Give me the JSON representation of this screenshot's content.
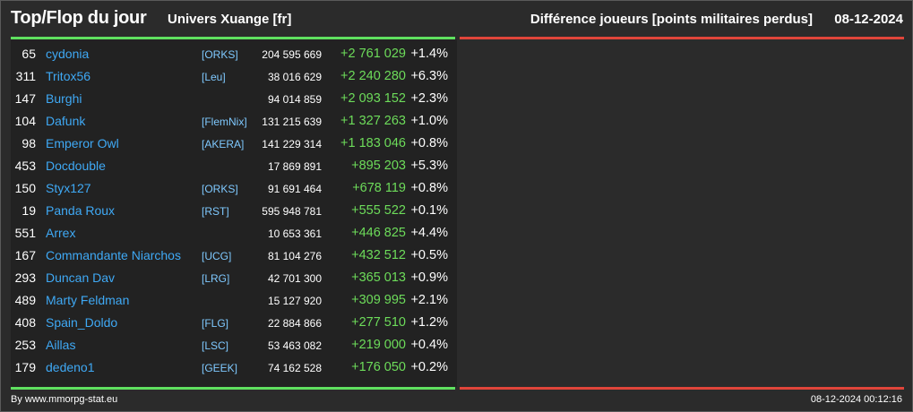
{
  "header": {
    "title": "Top/Flop du jour",
    "universe": "Univers Xuange [fr]",
    "stat_type": "Différence joueurs [points militaires perdus]",
    "date": "08-12-2024"
  },
  "colors": {
    "background": "#2b2b2b",
    "panel": "#222222",
    "top_line": "#5fe05f",
    "flop_line": "#e0453a",
    "name": "#3fa9f5",
    "alliance": "#7fc9ff",
    "gain": "#6ddc5a"
  },
  "top_list": [
    {
      "rank": "65",
      "name": "cydonia",
      "alliance": "[ORKS]",
      "points": "204 595 669",
      "diff": "+2 761 029",
      "pct": "+1.4%"
    },
    {
      "rank": "311",
      "name": "Tritox56",
      "alliance": "[Leu]",
      "points": "38 016 629",
      "diff": "+2 240 280",
      "pct": "+6.3%"
    },
    {
      "rank": "147",
      "name": "Burghi",
      "alliance": "",
      "points": "94 014 859",
      "diff": "+2 093 152",
      "pct": "+2.3%"
    },
    {
      "rank": "104",
      "name": "Dafunk",
      "alliance": "[FlemNix]",
      "points": "131 215 639",
      "diff": "+1 327 263",
      "pct": "+1.0%"
    },
    {
      "rank": "98",
      "name": "Emperor Owl",
      "alliance": "[AKERA]",
      "points": "141 229 314",
      "diff": "+1 183 046",
      "pct": "+0.8%"
    },
    {
      "rank": "453",
      "name": "Docdouble",
      "alliance": "",
      "points": "17 869 891",
      "diff": "+895 203",
      "pct": "+5.3%"
    },
    {
      "rank": "150",
      "name": "Styx127",
      "alliance": "[ORKS]",
      "points": "91 691 464",
      "diff": "+678 119",
      "pct": "+0.8%"
    },
    {
      "rank": "19",
      "name": "Panda Roux",
      "alliance": "[RST]",
      "points": "595 948 781",
      "diff": "+555 522",
      "pct": "+0.1%"
    },
    {
      "rank": "551",
      "name": "Arrex",
      "alliance": "",
      "points": "10 653 361",
      "diff": "+446 825",
      "pct": "+4.4%"
    },
    {
      "rank": "167",
      "name": "Commandante Niarchos",
      "alliance": "[UCG]",
      "points": "81 104 276",
      "diff": "+432 512",
      "pct": "+0.5%"
    },
    {
      "rank": "293",
      "name": "Duncan Dav",
      "alliance": "[LRG]",
      "points": "42 701 300",
      "diff": "+365 013",
      "pct": "+0.9%"
    },
    {
      "rank": "489",
      "name": "Marty Feldman",
      "alliance": "",
      "points": "15 127 920",
      "diff": "+309 995",
      "pct": "+2.1%"
    },
    {
      "rank": "408",
      "name": "Spain_Doldo",
      "alliance": "[FLG]",
      "points": "22 884 866",
      "diff": "+277 510",
      "pct": "+1.2%"
    },
    {
      "rank": "253",
      "name": "Aillas",
      "alliance": "[LSC]",
      "points": "53 463 082",
      "diff": "+219 000",
      "pct": "+0.4%"
    },
    {
      "rank": "179",
      "name": "dedeno1",
      "alliance": "[GEEK]",
      "points": "74 162 528",
      "diff": "+176 050",
      "pct": "+0.2%"
    }
  ],
  "footer": {
    "credit": "By www.mmorpg-stat.eu",
    "timestamp": "08-12-2024 00:12:16"
  }
}
